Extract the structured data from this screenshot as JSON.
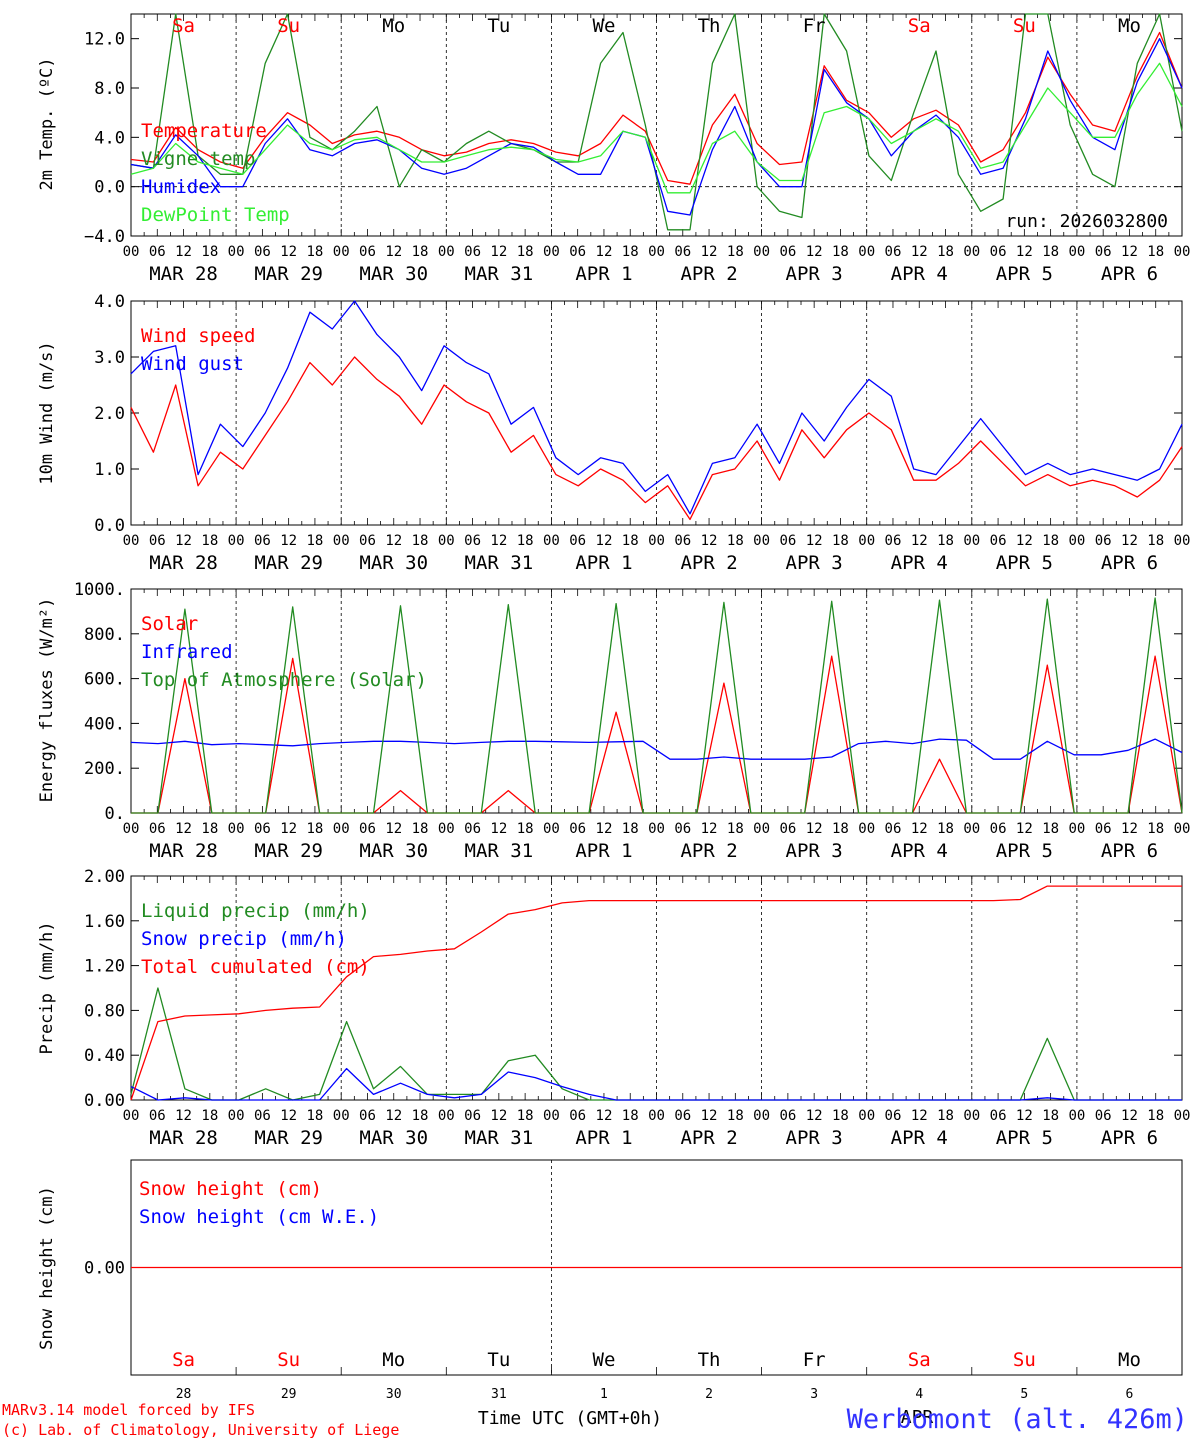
{
  "colors": {
    "red": "#ff0000",
    "green": "#228b22",
    "blue": "#0000ff",
    "lightgreen": "#33ee33",
    "black": "#000000"
  },
  "x_axis": {
    "time_ticks": [
      "00",
      "06",
      "12",
      "18"
    ],
    "final_tick": "00",
    "dates": [
      "MAR 28",
      "MAR 29",
      "MAR 30",
      "MAR 31",
      "APR  1",
      "APR  2",
      "APR  3",
      "APR  4",
      "APR  5",
      "APR  6"
    ],
    "weekdays": [
      {
        "label": "Sa",
        "color": "red"
      },
      {
        "label": "Su",
        "color": "red"
      },
      {
        "label": "Mo",
        "color": "black"
      },
      {
        "label": "Tu",
        "color": "black"
      },
      {
        "label": "We",
        "color": "black"
      },
      {
        "label": "Th",
        "color": "black"
      },
      {
        "label": "Fr",
        "color": "black"
      },
      {
        "label": "Sa",
        "color": "red"
      },
      {
        "label": "Su",
        "color": "red"
      },
      {
        "label": "Mo",
        "color": "black"
      }
    ],
    "bottom_day_numbers": [
      "28",
      "29",
      "30",
      "31",
      "1",
      "2",
      "3",
      "4",
      "5",
      "6"
    ],
    "bottom_month": "APR",
    "xlabel": "Time UTC (GMT+0h)"
  },
  "footer": {
    "credit_line1": "MARv3.14 model forced by IFS",
    "credit_line2": "(c) Lab. of Climatology, University of Liege",
    "station": "Werbomont (alt. 426m)"
  },
  "chart_data": [
    {
      "type": "line",
      "title": "2m Temperature",
      "ylabel": "2m Temp. (ºC)",
      "ylim": [
        -4,
        14
      ],
      "yticks": [
        -4,
        0,
        4,
        8,
        12
      ],
      "ytick_labels": [
        "−4.0",
        "0.0",
        "4.0",
        "8.0",
        "12.0"
      ],
      "zero_line": true,
      "annotation": "run: 2026032800",
      "x_hours_step": 6,
      "series": [
        {
          "name": "Temperature",
          "color": "red",
          "values": [
            2.2,
            2.0,
            4.8,
            3.0,
            2.0,
            1.5,
            4.0,
            6.0,
            5.0,
            3.5,
            4.2,
            4.5,
            4.0,
            3.0,
            2.5,
            2.8,
            3.5,
            3.8,
            3.5,
            2.8,
            2.5,
            3.5,
            5.8,
            4.5,
            0.5,
            0.2,
            5.0,
            7.5,
            3.5,
            1.8,
            2.0,
            9.8,
            7.0,
            6.0,
            4.0,
            5.5,
            6.2,
            5.0,
            2.0,
            3.0,
            6.0,
            10.5,
            7.5,
            5.0,
            4.5,
            9.0,
            12.5,
            8.0
          ]
        },
        {
          "name": "Vigne temp",
          "color": "green",
          "values": [
            1.8,
            1.5,
            14.0,
            2.5,
            1.0,
            1.0,
            10.0,
            14.0,
            4.0,
            3.0,
            4.5,
            6.5,
            0.0,
            3.0,
            2.0,
            3.5,
            4.5,
            3.5,
            3.0,
            2.0,
            2.0,
            10.0,
            12.5,
            5.0,
            -3.5,
            -3.5,
            10.0,
            14.0,
            0.0,
            -2.0,
            -2.5,
            14.0,
            11.0,
            2.5,
            0.5,
            6.0,
            11.0,
            1.0,
            -2.0,
            -1.0,
            14.0,
            14.0,
            5.0,
            1.0,
            0.0,
            10.0,
            14.0,
            4.5
          ]
        },
        {
          "name": "Humidex",
          "color": "blue",
          "values": [
            1.8,
            1.5,
            4.2,
            2.5,
            0.0,
            0.0,
            3.5,
            5.5,
            3.0,
            2.5,
            3.5,
            3.8,
            3.0,
            1.5,
            1.0,
            1.5,
            2.5,
            3.5,
            3.2,
            2.0,
            1.0,
            1.0,
            4.5,
            4.0,
            -2.0,
            -2.3,
            3.0,
            6.5,
            2.0,
            0.0,
            0.0,
            9.5,
            6.8,
            5.5,
            2.5,
            4.5,
            5.8,
            4.0,
            1.0,
            1.5,
            5.5,
            11.0,
            7.0,
            4.0,
            3.0,
            8.5,
            12.0,
            8.0
          ]
        },
        {
          "name": "DewPoint Temp",
          "color": "lightgreen",
          "values": [
            1.0,
            1.5,
            3.5,
            2.0,
            1.5,
            1.0,
            3.0,
            5.0,
            3.5,
            3.0,
            3.8,
            4.0,
            3.0,
            2.0,
            2.0,
            2.5,
            3.0,
            3.2,
            3.0,
            2.2,
            2.0,
            2.5,
            4.5,
            4.0,
            -0.5,
            -0.5,
            3.5,
            4.5,
            2.0,
            0.5,
            0.5,
            6.0,
            6.5,
            5.5,
            3.5,
            4.5,
            5.5,
            4.5,
            1.5,
            2.0,
            5.0,
            8.0,
            6.0,
            4.0,
            4.0,
            7.5,
            10.0,
            6.5
          ]
        }
      ]
    },
    {
      "type": "line",
      "title": "10m Wind",
      "ylabel": "10m Wind (m/s)",
      "ylim": [
        0,
        4
      ],
      "yticks": [
        0,
        1,
        2,
        3,
        4
      ],
      "ytick_labels": [
        "0.0",
        "1.0",
        "2.0",
        "3.0",
        "4.0"
      ],
      "x_hours_step": 6,
      "series": [
        {
          "name": "Wind speed",
          "color": "red",
          "values": [
            2.1,
            1.3,
            2.5,
            0.7,
            1.3,
            1.0,
            1.6,
            2.2,
            2.9,
            2.5,
            3.0,
            2.6,
            2.3,
            1.8,
            2.5,
            2.2,
            2.0,
            1.3,
            1.6,
            0.9,
            0.7,
            1.0,
            0.8,
            0.4,
            0.7,
            0.1,
            0.9,
            1.0,
            1.5,
            0.8,
            1.7,
            1.2,
            1.7,
            2.0,
            1.7,
            0.8,
            0.8,
            1.1,
            1.5,
            1.1,
            0.7,
            0.9,
            0.7,
            0.8,
            0.7,
            0.5,
            0.8,
            1.4
          ]
        },
        {
          "name": "Wind gust",
          "color": "blue",
          "values": [
            2.7,
            3.1,
            3.2,
            0.9,
            1.8,
            1.4,
            2.0,
            2.8,
            3.8,
            3.5,
            4.0,
            3.4,
            3.0,
            2.4,
            3.2,
            2.9,
            2.7,
            1.8,
            2.1,
            1.2,
            0.9,
            1.2,
            1.1,
            0.6,
            0.9,
            0.2,
            1.1,
            1.2,
            1.8,
            1.1,
            2.0,
            1.5,
            2.1,
            2.6,
            2.3,
            1.0,
            0.9,
            1.4,
            1.9,
            1.4,
            0.9,
            1.1,
            0.9,
            1.0,
            0.9,
            0.8,
            1.0,
            1.8
          ]
        }
      ]
    },
    {
      "type": "line",
      "title": "Energy fluxes",
      "ylabel": "Energy fluxes (W/m²)",
      "ylim": [
        0,
        1000
      ],
      "yticks": [
        0,
        200,
        400,
        600,
        800,
        1000
      ],
      "ytick_labels": [
        "0.",
        "200.",
        "400.",
        "600.",
        "800.",
        "1000."
      ],
      "x_hours_step": 6,
      "series": [
        {
          "name": "Solar",
          "color": "red",
          "values": [
            0,
            0,
            600,
            0,
            0,
            0,
            690,
            0,
            0,
            0,
            100,
            0,
            0,
            0,
            100,
            0,
            0,
            0,
            450,
            0,
            0,
            0,
            580,
            0,
            0,
            0,
            700,
            0,
            0,
            0,
            240,
            0,
            0,
            0,
            660,
            0,
            0,
            0,
            700,
            0
          ]
        },
        {
          "name": "Infrared",
          "color": "blue",
          "values": [
            315,
            310,
            320,
            305,
            310,
            305,
            300,
            310,
            315,
            320,
            320,
            315,
            310,
            315,
            320,
            320,
            318,
            315,
            318,
            320,
            240,
            240,
            250,
            240,
            240,
            240,
            250,
            310,
            320,
            310,
            330,
            325,
            240,
            240,
            320,
            260,
            260,
            280,
            330,
            270
          ]
        },
        {
          "name": "Top of Atmosphere (Solar)",
          "color": "green",
          "values": [
            0,
            0,
            910,
            0,
            0,
            0,
            920,
            0,
            0,
            0,
            925,
            0,
            0,
            0,
            930,
            0,
            0,
            0,
            935,
            0,
            0,
            0,
            940,
            0,
            0,
            0,
            945,
            0,
            0,
            0,
            950,
            0,
            0,
            0,
            955,
            0,
            0,
            0,
            960,
            0
          ]
        }
      ]
    },
    {
      "type": "line",
      "title": "Precip",
      "ylabel": "Precip (mm/h)",
      "ylim": [
        0,
        2.0
      ],
      "yticks": [
        0,
        0.4,
        0.8,
        1.2,
        1.6,
        2.0
      ],
      "ytick_labels": [
        "0.00",
        "0.40",
        "0.80",
        "1.20",
        "1.60",
        "2.00"
      ],
      "x_hours_step": 6,
      "series": [
        {
          "name": "Liquid precip (mm/h)",
          "color": "green",
          "values": [
            0.05,
            1.0,
            0.1,
            0.0,
            0.0,
            0.1,
            0.0,
            0.05,
            0.7,
            0.1,
            0.3,
            0.05,
            0.05,
            0.05,
            0.35,
            0.4,
            0.1,
            0.0,
            0.0,
            0.0,
            0.0,
            0.0,
            0.0,
            0.0,
            0.0,
            0.0,
            0.0,
            0.0,
            0.0,
            0.0,
            0.0,
            0.0,
            0.0,
            0.0,
            0.55,
            0.0,
            0.0,
            0.0,
            0.0,
            0.0
          ]
        },
        {
          "name": "Snow precip (mm/h)",
          "color": "blue",
          "values": [
            0.12,
            0.0,
            0.02,
            0.0,
            0.0,
            0.0,
            0.0,
            0.0,
            0.28,
            0.05,
            0.15,
            0.05,
            0.02,
            0.05,
            0.25,
            0.2,
            0.12,
            0.05,
            0.0,
            0.0,
            0.0,
            0.0,
            0.0,
            0.0,
            0.0,
            0.0,
            0.0,
            0.0,
            0.0,
            0.0,
            0.0,
            0.0,
            0.0,
            0.0,
            0.02,
            0.0,
            0.0,
            0.0,
            0.0,
            0.0
          ]
        },
        {
          "name": "Total cumulated (cm)",
          "color": "red",
          "values": [
            0.0,
            0.7,
            0.75,
            0.76,
            0.77,
            0.8,
            0.82,
            0.83,
            1.1,
            1.28,
            1.3,
            1.33,
            1.35,
            1.5,
            1.66,
            1.7,
            1.76,
            1.78,
            1.78,
            1.78,
            1.78,
            1.78,
            1.78,
            1.78,
            1.78,
            1.78,
            1.78,
            1.78,
            1.78,
            1.78,
            1.78,
            1.78,
            1.78,
            1.79,
            1.91,
            1.91,
            1.91,
            1.91,
            1.91,
            1.91
          ]
        }
      ]
    },
    {
      "type": "line",
      "title": "Snow height",
      "ylabel": "Snow height (cm)",
      "ylim": [
        -1,
        1
      ],
      "yticks": [
        0
      ],
      "ytick_labels": [
        "0.00"
      ],
      "series": [
        {
          "name": "Snow height (cm)",
          "color": "red",
          "values": [
            0,
            0
          ]
        },
        {
          "name": "Snow height (cm W.E.)",
          "color": "blue",
          "values": []
        }
      ]
    }
  ]
}
